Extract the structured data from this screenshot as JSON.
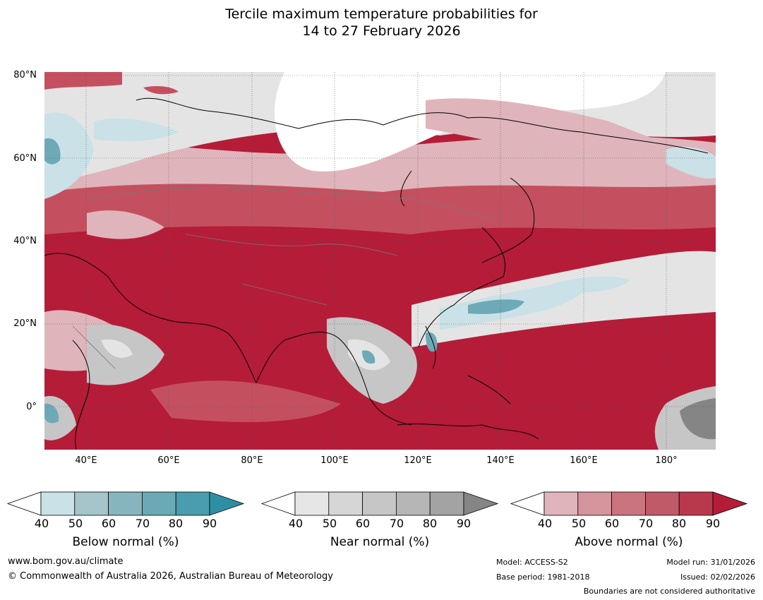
{
  "title": {
    "line1": "Tercile maximum temperature probabilities for",
    "line2": "14 to 27 February 2026"
  },
  "map": {
    "lat_labels": [
      "80°N",
      "60°N",
      "40°N",
      "20°N",
      "0°"
    ],
    "lon_labels": [
      "40°E",
      "60°E",
      "80°E",
      "100°E",
      "120°E",
      "140°E",
      "160°E",
      "180°"
    ],
    "colors": {
      "above_dark": "#b51c38",
      "above_mid": "#c4505f",
      "above_light": "#dfb5bb",
      "near_light": "#e4e4e4",
      "near_mid": "#c6c6c6",
      "near_dark": "#858585",
      "below_light": "#c9e1e7",
      "below_mid": "#6ea9b7"
    }
  },
  "colorbars": [
    {
      "name": "Below normal (%)",
      "ticks": [
        "40",
        "50",
        "60",
        "70",
        "80",
        "90"
      ],
      "colors": [
        "#ffffff",
        "#c9e1e7",
        "#a6c5cb",
        "#86b5bf",
        "#6aaab7",
        "#4a9dad",
        "#2e8fa4"
      ]
    },
    {
      "name": "Near normal (%)",
      "ticks": [
        "40",
        "50",
        "60",
        "70",
        "80",
        "90"
      ],
      "colors": [
        "#ffffff",
        "#e6e6e6",
        "#d6d6d6",
        "#c6c6c6",
        "#b6b6b6",
        "#a3a3a3",
        "#858585"
      ]
    },
    {
      "name": "Above normal (%)",
      "ticks": [
        "40",
        "50",
        "60",
        "70",
        "80",
        "90"
      ],
      "colors": [
        "#ffffff",
        "#dfb5bb",
        "#d4959c",
        "#c9747f",
        "#c05a68",
        "#b9394c",
        "#b51c38"
      ]
    }
  ],
  "footer": {
    "url": "www.bom.gov.au/climate",
    "copyright": "© Commonwealth of Australia 2026, Australian Bureau of Meteorology",
    "model": "Model: ACCESS-S2",
    "base_period": "Base period: 1981-2018",
    "model_run": "Model run: 31/01/2026",
    "issued": "Issued: 02/02/2026",
    "disclaimer": "Boundaries are not considered authoritative"
  }
}
